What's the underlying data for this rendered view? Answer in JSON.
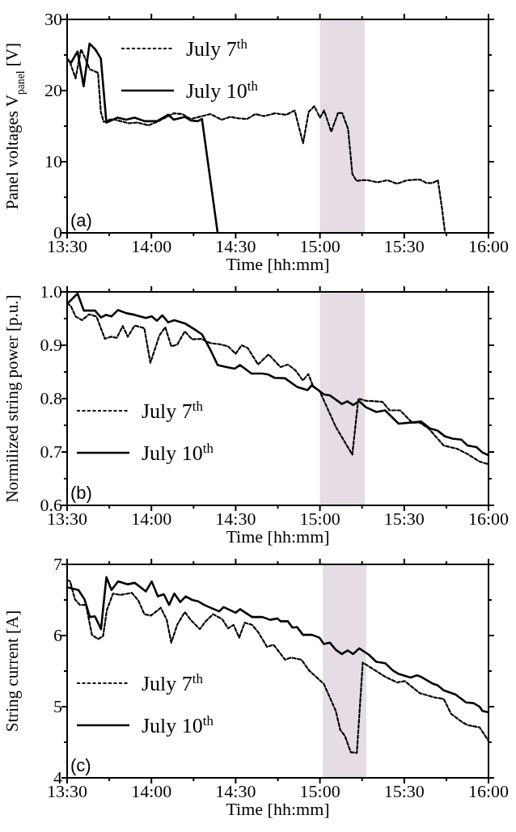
{
  "chart_data": [
    {
      "type": "line",
      "xlabel": "Time [hh:mm]",
      "ylabel": "Panel voltages V$_{panel}$ [V]",
      "legend": "top left",
      "annotations": [
        "(a)"
      ],
      "xlim": [
        13.5,
        16
      ],
      "xticks": [
        {
          "value": 13.5,
          "label": "13:30"
        },
        {
          "value": 13.75,
          "label": null
        },
        {
          "value": 14,
          "label": "14:00"
        },
        {
          "value": 14.25,
          "label": null
        },
        {
          "value": 14.5,
          "label": "14:30"
        },
        {
          "value": 14.75,
          "label": null
        },
        {
          "value": 15,
          "label": "15:00"
        },
        {
          "value": 15.25,
          "label": null
        },
        {
          "value": 15.5,
          "label": "15:30"
        },
        {
          "value": 15.75,
          "label": null
        },
        {
          "value": 16,
          "label": "16:00"
        }
      ],
      "ylim": [
        0,
        30
      ],
      "yticks": [
        0,
        {
          "value": 5,
          "label": null
        },
        10,
        {
          "value": 15,
          "label": null
        },
        20,
        {
          "value": 25,
          "label": null
        },
        30
      ],
      "bands": [
        {
          "axis": "x",
          "from": 15.0,
          "to": 15.267,
          "color": "#e5dce6"
        }
      ],
      "series": [
        {
          "name": "July 7$^{th}$",
          "color": "#000000",
          "line_style": "dashed",
          "x": [
            13.5,
            13.517,
            13.55,
            13.583,
            13.617,
            13.633,
            13.683,
            13.7,
            13.717,
            13.767,
            13.817,
            13.867,
            13.917,
            13.983,
            14.033,
            14.083,
            14.133,
            14.183,
            14.233,
            14.283,
            14.35,
            14.417,
            14.467,
            14.517,
            14.567,
            14.617,
            14.667,
            14.733,
            14.8,
            14.833,
            14.85,
            14.9,
            14.933,
            14.967,
            15.0,
            15.025,
            15.067,
            15.108,
            15.133,
            15.167,
            15.192,
            15.217,
            15.25,
            15.283,
            15.342,
            15.4,
            15.458,
            15.517,
            15.592,
            15.633,
            15.667,
            15.7,
            15.725,
            15.742
          ],
          "values": [
            24.5,
            24,
            21.7,
            25.8,
            24,
            23,
            22.5,
            17,
            15.6,
            16,
            15.7,
            15.4,
            15.5,
            15.1,
            15.6,
            16.2,
            16.8,
            16.7,
            16.0,
            16.3,
            16.7,
            15.9,
            16.3,
            16.1,
            16.0,
            16.7,
            16.4,
            16.8,
            16.6,
            17.0,
            17.2,
            12.6,
            17.0,
            17.8,
            16.2,
            17.2,
            14.2,
            16.9,
            16.8,
            14.6,
            8.3,
            7.3,
            7.4,
            7.4,
            7.1,
            7.4,
            6.9,
            7.4,
            7.5,
            7.0,
            7.0,
            7.4,
            3.3,
            0
          ]
        },
        {
          "name": "July 10$^{th}$",
          "color": "#000000",
          "line_style": "solid",
          "x": [
            13.505,
            13.523,
            13.562,
            13.598,
            13.633,
            13.667,
            13.7,
            13.733,
            13.8,
            13.85,
            13.9,
            13.958,
            14.033,
            14.1,
            14.133,
            14.2,
            14.233,
            14.275,
            14.3,
            14.393
          ],
          "values": [
            24.3,
            23.9,
            25.5,
            20.6,
            26.6,
            25.8,
            24.5,
            15.5,
            16.2,
            15.9,
            16.2,
            15.7,
            15.7,
            16.6,
            15.9,
            16.3,
            15.8,
            15.7,
            16.0,
            0
          ]
        }
      ]
    },
    {
      "type": "line",
      "xlabel": "Time [hh:mm]",
      "ylabel": "Normilized string power [p.u.]",
      "legend": "bottom left",
      "annotations": [
        "(b)"
      ],
      "xlim": [
        13.5,
        16
      ],
      "xticks": [
        {
          "value": 13.5,
          "label": "13:30"
        },
        {
          "value": 13.75,
          "label": null
        },
        {
          "value": 14,
          "label": "14:00"
        },
        {
          "value": 14.25,
          "label": null
        },
        {
          "value": 14.5,
          "label": "14:30"
        },
        {
          "value": 14.75,
          "label": null
        },
        {
          "value": 15,
          "label": "15:00"
        },
        {
          "value": 15.25,
          "label": null
        },
        {
          "value": 15.5,
          "label": "15:30"
        },
        {
          "value": 15.75,
          "label": null
        },
        {
          "value": 16,
          "label": "16:00"
        }
      ],
      "ylim": [
        0.6,
        1.0
      ],
      "yticks": [
        0.6,
        {
          "value": 0.65,
          "label": null
        },
        0.7,
        {
          "value": 0.75,
          "label": null
        },
        0.8,
        {
          "value": 0.85,
          "label": null
        },
        0.9,
        {
          "value": 0.95,
          "label": null
        },
        {
          "value": 1.0,
          "label": "1.0"
        }
      ],
      "bands": [
        {
          "axis": "x",
          "from": 15.0,
          "to": 15.267,
          "color": "#e5dce6"
        }
      ],
      "series": [
        {
          "name": "July 7$^{th}$",
          "color": "#000000",
          "line_style": "dashed",
          "x": [
            13.5,
            13.523,
            13.55,
            13.589,
            13.63,
            13.674,
            13.724,
            13.759,
            13.795,
            13.83,
            13.86,
            13.901,
            13.958,
            13.994,
            14.047,
            14.082,
            14.118,
            14.153,
            14.198,
            14.242,
            14.295,
            14.349,
            14.402,
            14.455,
            14.5,
            14.535,
            14.571,
            14.633,
            14.695,
            14.766,
            14.81,
            14.855,
            14.899,
            14.931,
            14.961,
            14.997,
            15.094,
            15.192,
            15.228,
            15.272,
            15.37,
            15.414,
            15.476,
            15.547,
            15.592,
            15.645,
            15.734,
            15.814,
            15.876,
            15.947,
            16.0
          ],
          "values": [
            0.979,
            0.973,
            0.954,
            0.947,
            0.958,
            0.954,
            0.912,
            0.916,
            0.914,
            0.936,
            0.916,
            0.937,
            0.932,
            0.867,
            0.918,
            0.934,
            0.898,
            0.901,
            0.926,
            0.911,
            0.912,
            0.904,
            0.902,
            0.898,
            0.884,
            0.9,
            0.895,
            0.864,
            0.883,
            0.859,
            0.864,
            0.853,
            0.834,
            0.846,
            0.822,
            0.815,
            0.747,
            0.695,
            0.8,
            0.796,
            0.794,
            0.778,
            0.778,
            0.755,
            0.755,
            0.744,
            0.712,
            0.706,
            0.696,
            0.682,
            0.677
          ]
        },
        {
          "name": "July 10$^{th}$",
          "color": "#000000",
          "line_style": "solid",
          "x": [
            13.505,
            13.562,
            13.599,
            13.665,
            13.701,
            13.731,
            13.763,
            13.802,
            13.852,
            13.901,
            13.967,
            14.002,
            14.033,
            14.065,
            14.1,
            14.136,
            14.198,
            14.26,
            14.301,
            14.349,
            14.393,
            14.446,
            14.494,
            14.526,
            14.594,
            14.659,
            14.695,
            14.73,
            14.793,
            14.864,
            14.926,
            14.952,
            15.023,
            15.059,
            15.13,
            15.162,
            15.197,
            15.233,
            15.272,
            15.334,
            15.387,
            15.467,
            15.6,
            15.654,
            15.698,
            15.743,
            15.787,
            15.84,
            15.876,
            15.929,
            15.964,
            16.0
          ],
          "values": [
            0.979,
            0.997,
            0.965,
            0.965,
            0.952,
            0.957,
            0.954,
            0.966,
            0.96,
            0.957,
            0.951,
            0.954,
            0.946,
            0.956,
            0.943,
            0.947,
            0.941,
            0.929,
            0.92,
            0.892,
            0.863,
            0.859,
            0.856,
            0.863,
            0.847,
            0.847,
            0.845,
            0.839,
            0.838,
            0.822,
            0.816,
            0.825,
            0.808,
            0.806,
            0.79,
            0.795,
            0.788,
            0.795,
            0.784,
            0.775,
            0.778,
            0.753,
            0.757,
            0.744,
            0.74,
            0.729,
            0.725,
            0.723,
            0.712,
            0.709,
            0.699,
            0.694
          ]
        }
      ]
    },
    {
      "type": "line",
      "xlabel": "Time [hh:mm]",
      "ylabel": "String current [A]",
      "legend": "bottom left",
      "annotations": [
        "(c)"
      ],
      "xlim": [
        13.5,
        16
      ],
      "xticks": [
        {
          "value": 13.5,
          "label": "13:30"
        },
        {
          "value": 13.75,
          "label": null
        },
        {
          "value": 14,
          "label": "14:00"
        },
        {
          "value": 14.25,
          "label": null
        },
        {
          "value": 14.5,
          "label": "14:30"
        },
        {
          "value": 14.75,
          "label": null
        },
        {
          "value": 15,
          "label": "15:00"
        },
        {
          "value": 15.25,
          "label": null
        },
        {
          "value": 15.5,
          "label": "15:30"
        },
        {
          "value": 15.75,
          "label": null
        },
        {
          "value": 16,
          "label": "16:00"
        }
      ],
      "ylim": [
        4,
        7
      ],
      "yticks": [
        4,
        {
          "value": 4.5,
          "label": null
        },
        5,
        {
          "value": 5.5,
          "label": null
        },
        6,
        {
          "value": 6.5,
          "label": null
        },
        7
      ],
      "bands": [
        {
          "axis": "x",
          "from": 15.017,
          "to": 15.275,
          "color": "#e5dce6"
        }
      ],
      "series": [
        {
          "name": "July 7$^{th}$",
          "color": "#000000",
          "line_style": "dashed",
          "x": [
            13.5,
            13.518,
            13.546,
            13.576,
            13.612,
            13.647,
            13.683,
            13.713,
            13.736,
            13.772,
            13.816,
            13.884,
            13.923,
            13.958,
            13.997,
            14.056,
            14.091,
            14.118,
            14.153,
            14.198,
            14.233,
            14.287,
            14.322,
            14.366,
            14.42,
            14.455,
            14.487,
            14.521,
            14.553,
            14.597,
            14.633,
            14.686,
            14.725,
            14.793,
            14.828,
            14.89,
            14.935,
            15.023,
            15.094,
            15.121,
            15.148,
            15.183,
            15.219,
            15.254,
            15.308,
            15.387,
            15.458,
            15.503,
            15.592,
            15.68,
            15.734,
            15.778,
            15.84,
            15.876,
            15.947,
            16.0
          ],
          "values": [
            6.78,
            6.76,
            6.51,
            6.43,
            6.43,
            6.01,
            5.95,
            5.99,
            6.36,
            6.59,
            6.57,
            6.6,
            6.49,
            6.3,
            6.28,
            6.39,
            6.22,
            5.9,
            6.15,
            6.33,
            6.22,
            6.09,
            6.2,
            6.3,
            6.23,
            6.1,
            6.15,
            5.97,
            6.18,
            6.15,
            6.05,
            5.84,
            5.87,
            5.66,
            5.69,
            5.66,
            5.51,
            5.32,
            4.94,
            4.67,
            4.59,
            4.36,
            4.35,
            5.62,
            5.54,
            5.42,
            5.34,
            5.36,
            5.19,
            5.13,
            5.11,
            4.9,
            4.79,
            4.74,
            4.71,
            4.52
          ]
        },
        {
          "name": "July 10$^{th}$",
          "color": "#000000",
          "line_style": "solid",
          "x": [
            13.5,
            13.567,
            13.603,
            13.635,
            13.665,
            13.701,
            13.733,
            13.763,
            13.802,
            13.86,
            13.901,
            13.94,
            13.967,
            14.002,
            14.038,
            14.074,
            14.105,
            14.136,
            14.171,
            14.203,
            14.242,
            14.278,
            14.313,
            14.402,
            14.429,
            14.5,
            14.526,
            14.597,
            14.659,
            14.704,
            14.748,
            14.766,
            14.81,
            14.837,
            14.864,
            14.899,
            14.952,
            14.997,
            15.023,
            15.059,
            15.094,
            15.13,
            15.165,
            15.197,
            15.233,
            15.29,
            15.334,
            15.387,
            15.432,
            15.467,
            15.538,
            15.574,
            15.6,
            15.672,
            15.698,
            15.734,
            15.805,
            15.867,
            15.911,
            15.947,
            15.964,
            16.0
          ],
          "values": [
            6.68,
            6.64,
            6.51,
            6.26,
            6.27,
            6.09,
            6.82,
            6.64,
            6.76,
            6.72,
            6.74,
            6.67,
            6.62,
            6.76,
            6.55,
            6.58,
            6.43,
            6.59,
            6.47,
            6.55,
            6.5,
            6.48,
            6.43,
            6.34,
            6.4,
            6.32,
            6.37,
            6.26,
            6.26,
            6.22,
            6.24,
            6.2,
            6.2,
            6.11,
            6.12,
            6.01,
            6.01,
            5.97,
            5.88,
            5.9,
            5.8,
            5.74,
            5.79,
            5.74,
            5.82,
            5.73,
            5.63,
            5.61,
            5.51,
            5.46,
            5.41,
            5.44,
            5.42,
            5.32,
            5.3,
            5.23,
            5.17,
            5.06,
            5.05,
            5.0,
            4.94,
            4.92
          ]
        }
      ]
    }
  ]
}
